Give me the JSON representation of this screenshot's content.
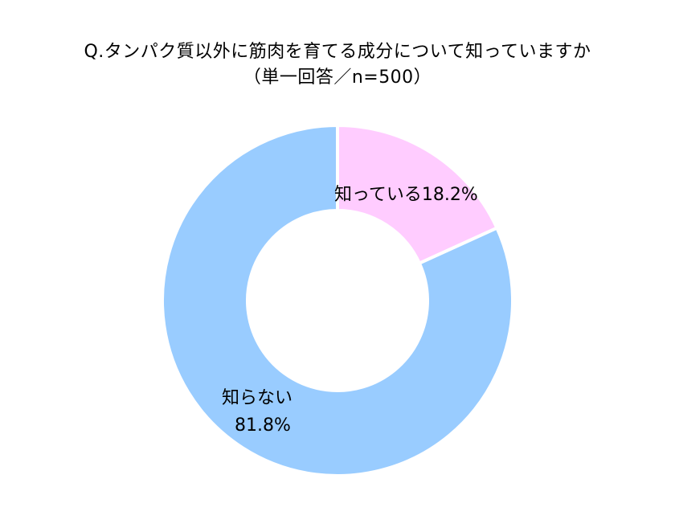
{
  "chart_data": {
    "type": "pie",
    "title_lines": [
      "Q.タンパク質以外に筋肉を育てる成分について知っていますか",
      "（単一回答／n=500）"
    ],
    "slices": [
      {
        "label": "知っている",
        "value": 18.2,
        "value_text": "18.2%",
        "color": "#ffccff"
      },
      {
        "label": "知らない",
        "value": 81.8,
        "value_text": "81.8%",
        "color": "#99ccff"
      }
    ],
    "donut": true,
    "start_angle_deg": 0,
    "direction": "clockwise",
    "slice_border_color": "#ffffff"
  }
}
